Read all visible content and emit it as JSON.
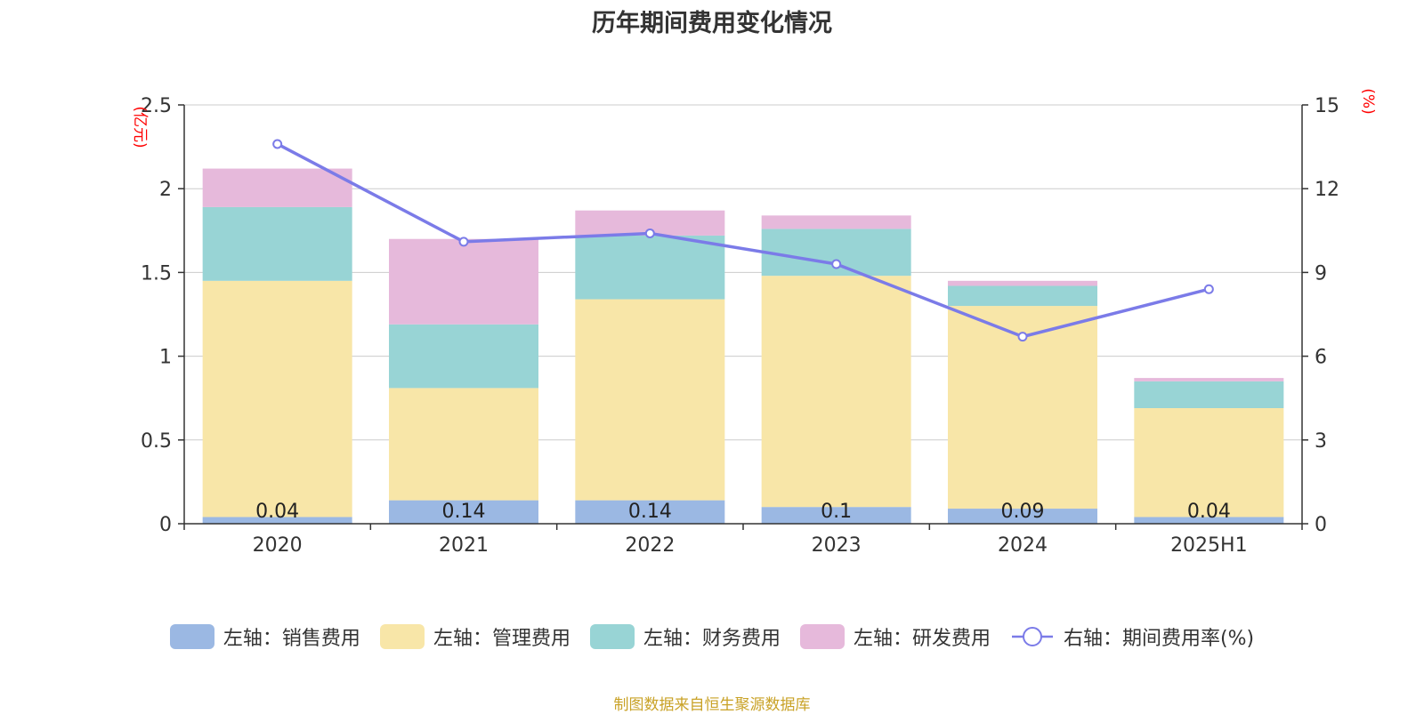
{
  "title": "历年期间费用变化情况",
  "source": "制图数据来自恒生聚源数据库",
  "colors": {
    "sales": "#9bb8e3",
    "admin": "#f8e6a8",
    "finance": "#98d4d5",
    "rd": "#e6b9db",
    "rate": "#7b7be8",
    "unit": "#ff0000",
    "axis": "#333333",
    "grid": "#cccccc"
  },
  "chart_data": {
    "type": "bar",
    "stacked": true,
    "categories": [
      "2020",
      "2021",
      "2022",
      "2023",
      "2024",
      "2025H1"
    ],
    "left_axis": {
      "unit": "(亿元)",
      "ylim": [
        0,
        2.5
      ],
      "ticks": [
        "0",
        "0.5",
        "1",
        "1.5",
        "2",
        "2.5"
      ]
    },
    "right_axis": {
      "unit": "(%)",
      "ylim": [
        0,
        15
      ],
      "ticks": [
        "0",
        "3",
        "6",
        "9",
        "12",
        "15"
      ]
    },
    "series": [
      {
        "name": "左轴：销售费用",
        "key": "sales",
        "values": [
          0.04,
          0.14,
          0.14,
          0.1,
          0.09,
          0.04
        ],
        "labels": [
          "0.04",
          "0.14",
          "0.14",
          "0.1",
          "0.09",
          "0.04"
        ]
      },
      {
        "name": "左轴：管理费用",
        "key": "admin",
        "values": [
          1.41,
          0.67,
          1.2,
          1.38,
          1.21,
          0.65
        ]
      },
      {
        "name": "左轴：财务费用",
        "key": "finance",
        "values": [
          0.44,
          0.38,
          0.38,
          0.28,
          0.12,
          0.16
        ]
      },
      {
        "name": "左轴：研发费用",
        "key": "rd",
        "values": [
          0.23,
          0.51,
          0.15,
          0.08,
          0.03,
          0.02
        ]
      }
    ],
    "line_series": {
      "name": "右轴：期间费用率(%)",
      "key": "rate",
      "values": [
        13.6,
        10.1,
        10.4,
        9.3,
        6.7,
        8.4
      ]
    },
    "grid": true,
    "legend_position": "bottom"
  }
}
